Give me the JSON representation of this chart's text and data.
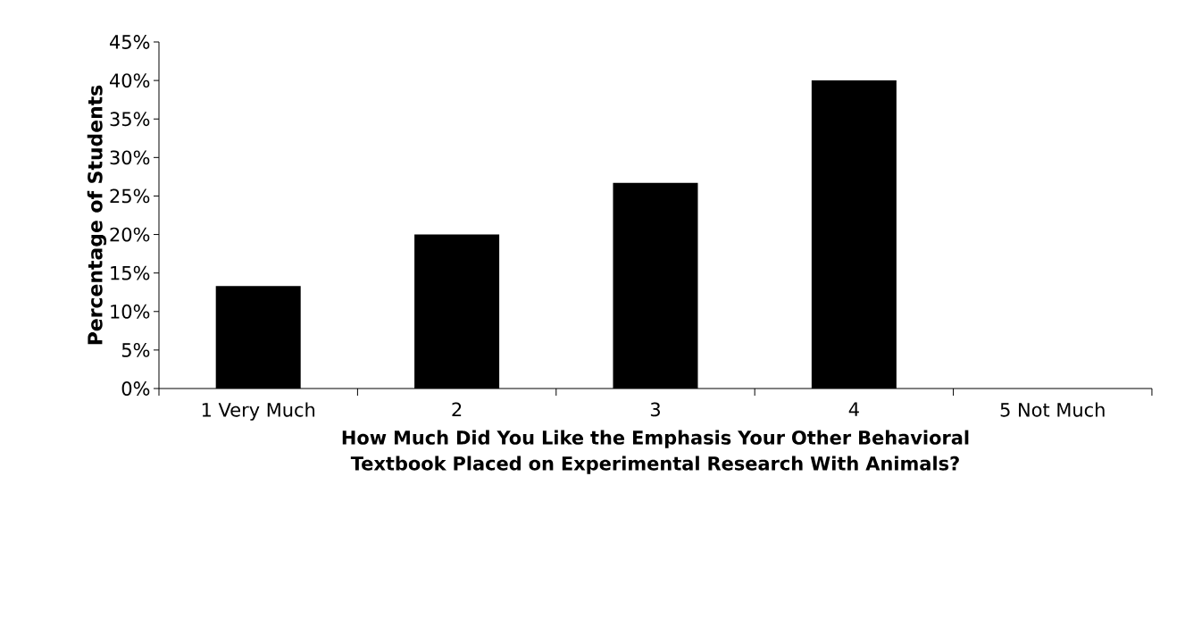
{
  "chart_data": {
    "type": "bar",
    "xlabel": "How Much Did You Like the Emphasis Your Other Behavioral Textbook Placed on Experimental Research With Animals?",
    "ylabel": "Percentage of Students",
    "categories": [
      "1 Very Much",
      "2",
      "3",
      "4",
      "5 Not Much"
    ],
    "values": [
      13.3,
      20,
      26.7,
      40,
      0
    ],
    "color": "#000000",
    "ylim": [
      0,
      45
    ],
    "yticks": [
      {
        "value": 0,
        "label": "0%"
      },
      {
        "value": 5,
        "label": "5%"
      },
      {
        "value": 10,
        "label": "10%"
      },
      {
        "value": 15,
        "label": "15%"
      },
      {
        "value": 20,
        "label": "20%"
      },
      {
        "value": 25,
        "label": "25%"
      },
      {
        "value": 30,
        "label": "30%"
      },
      {
        "value": 35,
        "label": "35%"
      },
      {
        "value": 40,
        "label": "40%"
      },
      {
        "value": 45,
        "label": "45%"
      }
    ]
  }
}
